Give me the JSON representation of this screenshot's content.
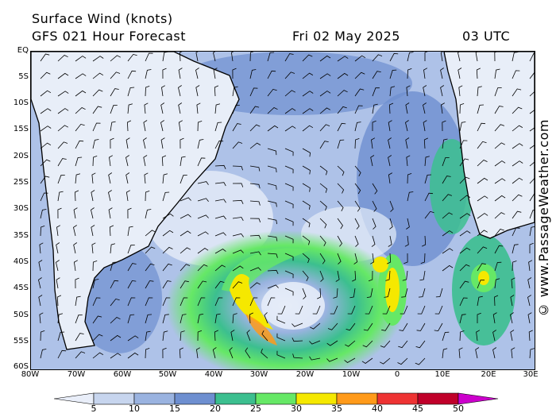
{
  "header": {
    "title": "Surface Wind (knots)",
    "subtitle": "GFS 021 Hour Forecast",
    "date": "Fri 02 May 2025",
    "time": "03 UTC"
  },
  "credit": "© www.PassageWeather.com",
  "map": {
    "type": "map",
    "region": "South Atlantic",
    "lat_range": [
      -60,
      0
    ],
    "lon_range": [
      -80,
      30
    ],
    "lat_labels": [
      "EQ",
      "5S",
      "10S",
      "15S",
      "20S",
      "25S",
      "30S",
      "35S",
      "40S",
      "45S",
      "50S",
      "55S",
      "60S"
    ],
    "lon_labels": [
      "80W",
      "70W",
      "60W",
      "50W",
      "40W",
      "30W",
      "20W",
      "10W",
      "0",
      "10E",
      "20E",
      "30E"
    ],
    "features": [
      "South America",
      "Africa",
      "low-pressure cyclone near 48S 27W",
      "strong winds off southwest Africa"
    ]
  },
  "legend": {
    "unit": "knots",
    "ticks": [
      "5",
      "10",
      "15",
      "20",
      "25",
      "30",
      "35",
      "40",
      "45",
      "50"
    ],
    "colors": [
      "#e9eef9",
      "#c7d5ee",
      "#9ab3e0",
      "#6e8fd0",
      "#3cbf8f",
      "#66e866",
      "#f5e800",
      "#ff9a1a",
      "#ee3333",
      "#c0002a",
      "#cc00cc"
    ]
  }
}
